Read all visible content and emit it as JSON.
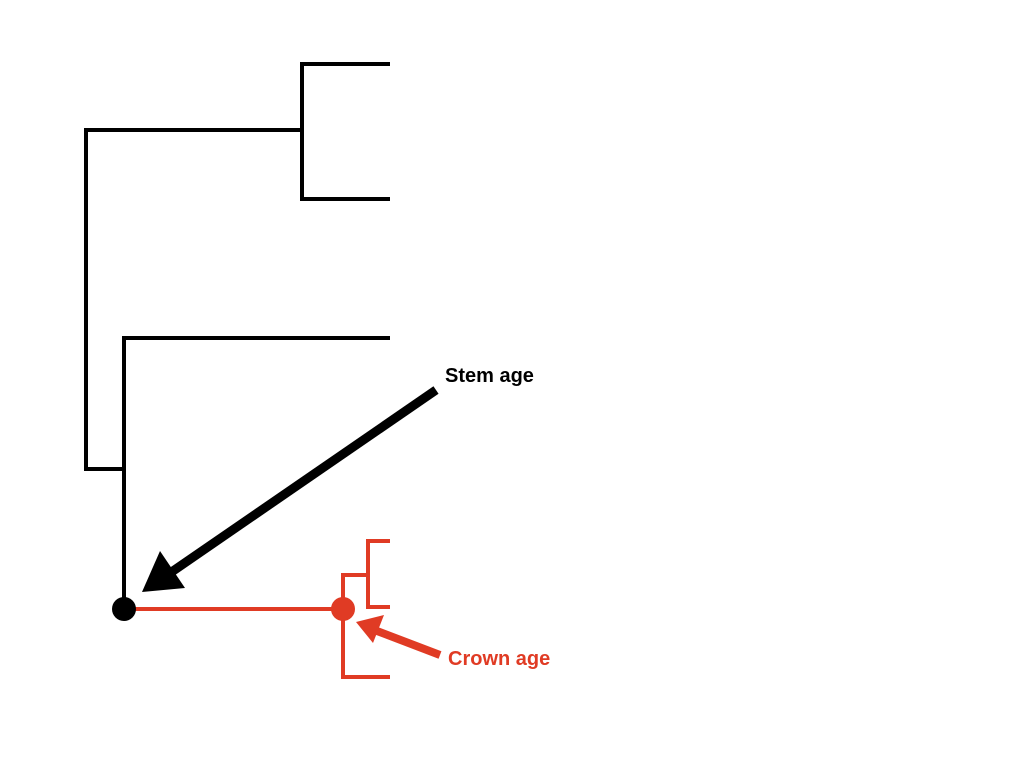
{
  "labels": {
    "stem_age": "Stem age",
    "crown_age": "Crown age"
  },
  "colors": {
    "background": "#ffffff",
    "tree_lines": "#000000",
    "highlight": "#e03b24"
  }
}
